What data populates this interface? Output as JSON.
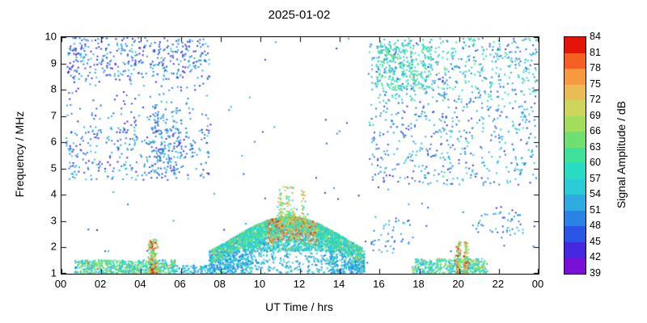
{
  "chart_data": {
    "type": "heatmap",
    "title": "2025-01-02",
    "xlabel": "UT Time / hrs",
    "ylabel": "Frequency / MHz",
    "colorbar_label": "Signal Amplitude / dB",
    "xlim": [
      0,
      24
    ],
    "ylim": [
      1,
      10
    ],
    "grid": false,
    "x_tick_values": [
      0,
      2,
      4,
      6,
      8,
      10,
      12,
      14,
      16,
      18,
      20,
      22,
      24
    ],
    "x_tick_labels": [
      "00",
      "02",
      "04",
      "06",
      "08",
      "10",
      "12",
      "14",
      "16",
      "18",
      "20",
      "22",
      "00"
    ],
    "y_tick_values": [
      1,
      2,
      3,
      4,
      5,
      6,
      7,
      8,
      9,
      10
    ],
    "cbar_range": [
      39,
      84
    ],
    "cbar_step": 3,
    "cbar_ticks": [
      39,
      42,
      45,
      48,
      51,
      54,
      57,
      60,
      63,
      66,
      69,
      72,
      75,
      78,
      81,
      84
    ],
    "palette": [
      "#7a0fd8",
      "#4428e0",
      "#2b55e4",
      "#2a82e4",
      "#2fabe2",
      "#2ccbd8",
      "#27dcc2",
      "#3fe09a",
      "#6fdf72",
      "#a4dc5e",
      "#cfd45a",
      "#e9bc55",
      "#f69a40",
      "#f55f22",
      "#e41408"
    ],
    "dome": {
      "base": 1.15,
      "height": 2.05,
      "center": 11.4,
      "sigma": 2.8
    },
    "regions": [
      {
        "name": "night-noise-left-high",
        "kind": "rect",
        "t": [
          0.2,
          7.4
        ],
        "f": [
          8.4,
          10.0
        ],
        "n": 380,
        "amp": [
          42,
          56
        ]
      },
      {
        "name": "night-noise-left-mid",
        "kind": "rect",
        "t": [
          0.2,
          7.4
        ],
        "f": [
          4.6,
          6.6
        ],
        "n": 320,
        "amp": [
          42,
          56
        ]
      },
      {
        "name": "night-noise-left-gap",
        "kind": "rect",
        "t": [
          0.2,
          7.4
        ],
        "f": [
          6.6,
          8.4
        ],
        "n": 90,
        "amp": [
          42,
          54
        ]
      },
      {
        "name": "left-vertical-streaks",
        "kind": "rect",
        "t": [
          4.5,
          6.0
        ],
        "f": [
          4.8,
          7.6
        ],
        "n": 130,
        "amp": [
          45,
          56
        ]
      },
      {
        "name": "night-noise-right-high",
        "kind": "rect",
        "t": [
          15.4,
          23.9
        ],
        "f": [
          7.6,
          10.0
        ],
        "n": 520,
        "amp": [
          45,
          62
        ],
        "hotP": 0.08,
        "hotAmp": [
          58,
          66
        ]
      },
      {
        "name": "right-green-cluster",
        "kind": "rect",
        "t": [
          15.8,
          18.6
        ],
        "f": [
          8.0,
          9.8
        ],
        "n": 260,
        "amp": [
          54,
          66
        ]
      },
      {
        "name": "night-noise-right-scatter",
        "kind": "rect",
        "t": [
          15.4,
          23.9
        ],
        "f": [
          4.4,
          7.6
        ],
        "n": 420,
        "amp": [
          44,
          58
        ]
      },
      {
        "name": "sparse-background",
        "kind": "rect",
        "t": [
          0.2,
          23.8
        ],
        "f": [
          1.0,
          10.0
        ],
        "n": 130,
        "amp": [
          42,
          54
        ]
      },
      {
        "name": "daytime-dome-fill",
        "kind": "dome",
        "t": [
          7.4,
          15.2
        ],
        "n": 2400,
        "amp": [
          48,
          58
        ],
        "hotP": 0.1,
        "hotAmp": [
          58,
          66
        ],
        "hole": {
          "t": [
            9.6,
            13.4
          ],
          "f": [
            1.0,
            1.9
          ],
          "p": 0.65
        }
      },
      {
        "name": "daytime-dome-top",
        "kind": "dometop",
        "t": [
          7.5,
          15.1
        ],
        "spread": 0.55,
        "n": 1100,
        "amp": [
          54,
          66
        ],
        "hotP": 0.12,
        "hotAmp": [
          66,
          75
        ]
      },
      {
        "name": "dome-mid-band",
        "kind": "domeband",
        "t": [
          9.0,
          14.0
        ],
        "fmin": 1.9,
        "n": 800,
        "amp": [
          54,
          63
        ],
        "hotP": 0.08,
        "hotAmp": [
          63,
          70
        ]
      },
      {
        "name": "dome-core-hot",
        "kind": "dometop",
        "t": [
          10.3,
          12.8
        ],
        "spread": 0.9,
        "n": 300,
        "amp": [
          66,
          81
        ],
        "hotP": 0.12,
        "hotAmp": [
          78,
          84
        ]
      },
      {
        "name": "dome-spikes",
        "kind": "spike",
        "centers": [
          11.0,
          11.3,
          11.55,
          12.1
        ],
        "f": [
          3.1,
          4.35
        ],
        "n": 140,
        "amp": [
          57,
          78
        ]
      },
      {
        "name": "dawn-band",
        "kind": "rect",
        "t": [
          0.6,
          5.7
        ],
        "f": [
          1.0,
          1.55
        ],
        "n": 650,
        "amp": [
          51,
          68
        ],
        "hotP": 0.07,
        "hotAmp": [
          69,
          80
        ]
      },
      {
        "name": "dawn-burst",
        "kind": "spike",
        "centers": [
          4.45,
          4.65
        ],
        "f": [
          1.0,
          2.35
        ],
        "n": 240,
        "amp": [
          57,
          80
        ],
        "hotP": 0.12,
        "hotAmp": [
          78,
          84
        ]
      },
      {
        "name": "pre-dome-sparse",
        "kind": "rect",
        "t": [
          5.7,
          7.5
        ],
        "f": [
          1.0,
          1.35
        ],
        "n": 90,
        "amp": [
          48,
          60
        ]
      },
      {
        "name": "evening-band",
        "kind": "rect",
        "t": [
          17.6,
          21.4
        ],
        "f": [
          1.0,
          1.6
        ],
        "n": 420,
        "amp": [
          51,
          68
        ],
        "hotP": 0.06,
        "hotAmp": [
          69,
          78
        ]
      },
      {
        "name": "evening-burst",
        "kind": "spike",
        "centers": [
          19.9,
          20.3
        ],
        "f": [
          1.0,
          2.25
        ],
        "n": 220,
        "amp": [
          57,
          80
        ],
        "hotP": 0.12,
        "hotAmp": [
          78,
          84
        ]
      },
      {
        "name": "mid-right-speckles",
        "kind": "rect",
        "t": [
          20.8,
          23.2
        ],
        "f": [
          2.4,
          3.4
        ],
        "n": 45,
        "amp": [
          45,
          57
        ]
      },
      {
        "name": "right-low-speckles",
        "kind": "rect",
        "t": [
          15.5,
          17.5
        ],
        "f": [
          1.8,
          3.2
        ],
        "n": 40,
        "amp": [
          45,
          57
        ]
      }
    ]
  }
}
